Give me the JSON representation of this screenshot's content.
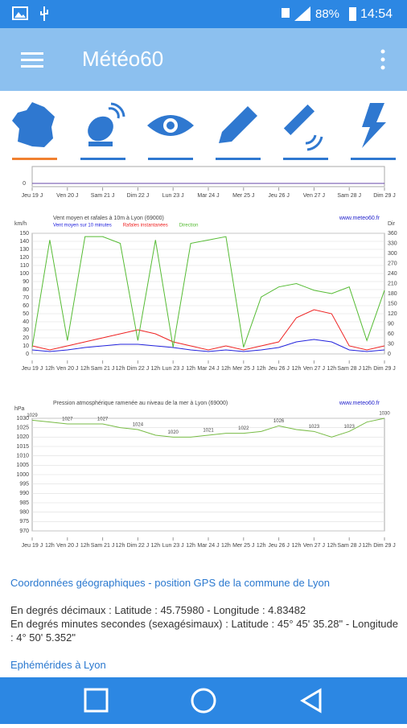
{
  "status_bar": {
    "battery": "88%",
    "time": "14:54"
  },
  "app_bar": {
    "title": "Météo60"
  },
  "top_chart": {
    "x_labels": [
      "Jeu 19 J",
      "Ven 20 J",
      "Sam 21 J",
      "Dim 22 J",
      "Lun 23 J",
      "Mar 24 J",
      "Mer 25 J",
      "Jeu 26 J",
      "Ven 27 J",
      "Sam 28 J",
      "Dim 29 J"
    ],
    "yticks": [
      0
    ]
  },
  "wind_chart": {
    "title": "Vent moyen et rafales à 10m à Lyon (69000)",
    "site": "www.meteo60.fr",
    "y_label": "km/h",
    "y2_label": "Dir",
    "x_labels": [
      "Jeu 19 J",
      "Ven 20 J",
      "Sam 21 J",
      "Dim 22 J",
      "Lun 23 J",
      "Mar 24 J",
      "Mer 25 J",
      "Jeu 26 J",
      "Ven 27 J",
      "Sam 28 J",
      "Dim 29 J"
    ],
    "x_minor_label": "12h",
    "ylim": [
      0,
      150
    ],
    "yticks": [
      0,
      10,
      20,
      30,
      40,
      50,
      60,
      70,
      80,
      90,
      100,
      110,
      120,
      130,
      140,
      150
    ],
    "y2lim": [
      0,
      360
    ],
    "y2ticks": [
      0,
      30,
      60,
      90,
      120,
      150,
      180,
      210,
      240,
      270,
      300,
      330,
      360
    ],
    "series": [
      {
        "name": "Vent moyen sur 10 minutes",
        "color": "#2222dd",
        "values": [
          5,
          3,
          5,
          8,
          10,
          12,
          12,
          10,
          8,
          5,
          3,
          5,
          3,
          5,
          8,
          15,
          18,
          15,
          5,
          3,
          5
        ]
      },
      {
        "name": "Rafales instantanées",
        "color": "#ee2222",
        "values": [
          10,
          5,
          10,
          15,
          20,
          25,
          30,
          25,
          15,
          10,
          5,
          10,
          5,
          10,
          15,
          45,
          55,
          50,
          10,
          5,
          10
        ]
      },
      {
        "name": "Direction",
        "color": "#55bb33",
        "axis": "y2",
        "values": [
          20,
          340,
          40,
          350,
          350,
          330,
          40,
          340,
          20,
          330,
          340,
          350,
          20,
          170,
          200,
          210,
          190,
          180,
          200,
          40,
          190
        ]
      }
    ]
  },
  "pressure_chart": {
    "title": "Pression atmosphérique ramenée au niveau de la mer à Lyon (69000)",
    "site": "www.meteo60.fr",
    "y_label": "hPa",
    "x_labels": [
      "Jeu 19 J",
      "Ven 20 J",
      "Sam 21 J",
      "Dim 22 J",
      "Lun 23 J",
      "Mar 24 J",
      "Mer 25 J",
      "Jeu 26 J",
      "Ven 27 J",
      "Sam 28 J",
      "Dim 29 J"
    ],
    "x_minor_label": "12h",
    "ylim": [
      970,
      1030
    ],
    "yticks": [
      970,
      975,
      980,
      985,
      990,
      995,
      1000,
      1005,
      1010,
      1015,
      1020,
      1025,
      1030
    ],
    "series": [
      {
        "name": "Pression",
        "color": "#77bb44",
        "values": [
          1029,
          1028,
          1027,
          1027,
          1027,
          1025,
          1024,
          1021,
          1020,
          1020,
          1021,
          1022,
          1022,
          1023,
          1026,
          1024,
          1023,
          1020,
          1023,
          1028,
          1030
        ]
      }
    ]
  },
  "info": {
    "gps_link": "Coordonnées géographiques - position GPS de la commune de Lyon",
    "decimal": "En degrés décimaux : Latitude : 45.75980 - Longitude : 4.83482",
    "dms": "En degrés minutes secondes (sexagésimaux) : Latitude : 45° 45' 35.28\" - Longitude : 4° 50' 5.352\"",
    "ephemerides_link": "Ephémérides à Lyon"
  }
}
